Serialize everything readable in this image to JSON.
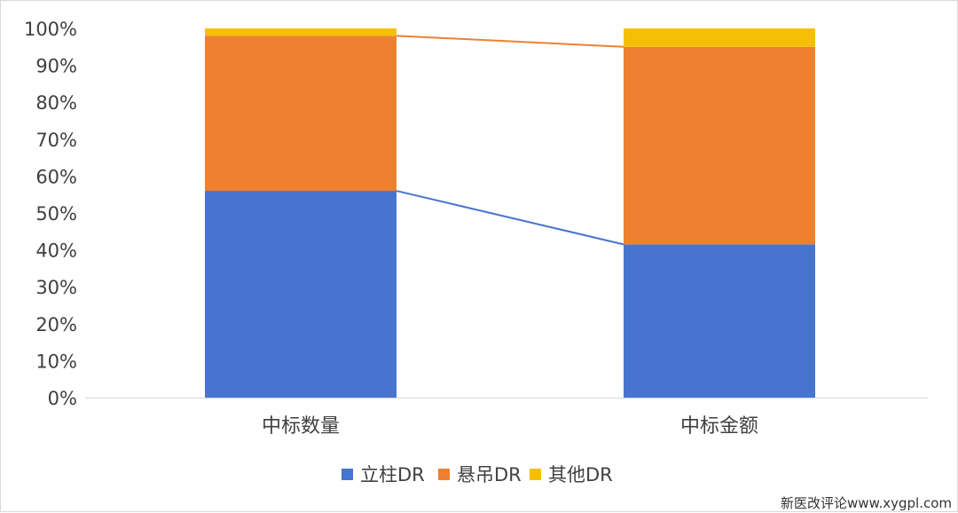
{
  "chart_data": {
    "type": "bar",
    "stacked": "percent",
    "categories": [
      "中标数量",
      "中标金额"
    ],
    "series": [
      {
        "name": "立柱DR",
        "values": [
          56,
          41.5
        ],
        "color": "#4774ce"
      },
      {
        "name": "悬吊DR",
        "values": [
          42,
          53.5
        ],
        "color": "#ed8130"
      },
      {
        "name": "其他DR",
        "values": [
          2,
          5
        ],
        "color": "#f5c003"
      }
    ],
    "ylim": [
      0,
      100
    ],
    "yticks": [
      "0%",
      "10%",
      "20%",
      "30%",
      "40%",
      "50%",
      "60%",
      "70%",
      "80%",
      "90%",
      "100%"
    ],
    "connector_lines": true,
    "grid": false,
    "legend_position": "bottom"
  },
  "watermark": "新医改评论www.xygpl.com"
}
